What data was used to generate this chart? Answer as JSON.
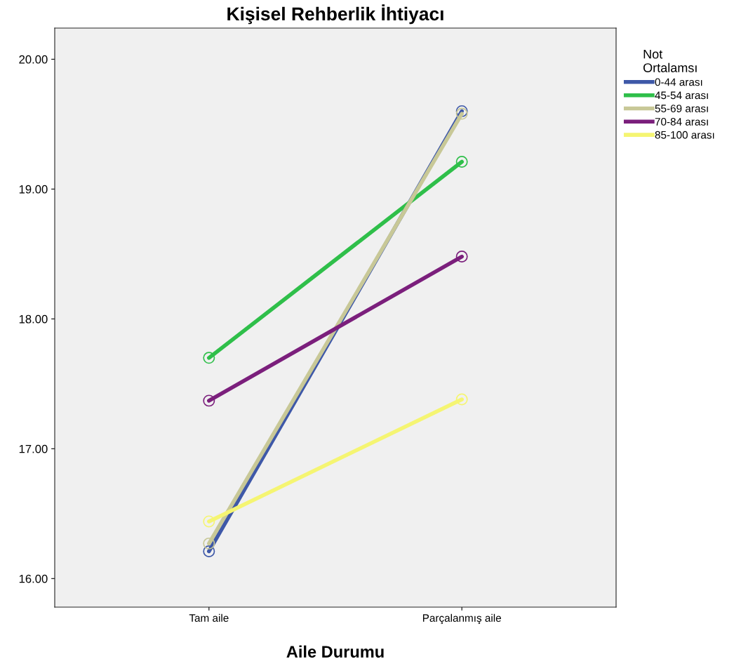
{
  "chart_data": {
    "type": "line",
    "title": "Kişisel Rehberlik İhtiyacı",
    "xlabel": "Aile Durumu",
    "categories": [
      "Tam aile",
      "Parçalanmış aile"
    ],
    "series": [
      {
        "name": "0-44 arası",
        "color": "#3e58a8",
        "values": [
          16.21,
          19.6
        ]
      },
      {
        "name": "45-54 arası",
        "color": "#2fbf4a",
        "values": [
          17.7,
          19.21
        ]
      },
      {
        "name": "55-69 arası",
        "color": "#c8c897",
        "values": [
          16.27,
          19.58
        ]
      },
      {
        "name": "70-84 arası",
        "color": "#7b1f7c",
        "values": [
          17.37,
          18.48
        ]
      },
      {
        "name": "85-100 arası",
        "color": "#f5f572",
        "values": [
          16.44,
          17.38
        ]
      }
    ],
    "legend_title": "Not\nOrtalamsı",
    "legend": "right",
    "ylim": [
      15.78,
      20.24
    ],
    "yticks": [
      {
        "value": 16,
        "label": "16.00"
      },
      {
        "value": 17,
        "label": "17.00"
      },
      {
        "value": 18,
        "label": "18.00"
      },
      {
        "value": 19,
        "label": "19.00"
      },
      {
        "value": 20,
        "label": "20.00"
      }
    ],
    "marker": "circle",
    "grid": false
  }
}
